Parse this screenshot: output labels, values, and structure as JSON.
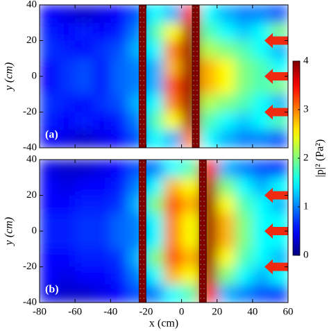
{
  "chart_data": [
    {
      "type": "heatmap",
      "panel_label": "(a)",
      "ylabel": "y (cm)",
      "xlim": [
        -80,
        60
      ],
      "ylim": [
        -40,
        40
      ],
      "xticks": [
        -80,
        -60,
        -40,
        -20,
        0,
        20,
        40,
        60
      ],
      "xticklabels": false,
      "yticks": [
        -40,
        -20,
        0,
        20,
        40
      ],
      "x": [
        -75,
        -65,
        -55,
        -45,
        -35,
        -25,
        -15,
        -5,
        5,
        15,
        25,
        35,
        45,
        55
      ],
      "y": [
        35,
        25,
        15,
        5,
        -5,
        -15,
        -25,
        -35
      ],
      "z": [
        [
          0.5,
          0.4,
          0.3,
          0.4,
          0.5,
          0.8,
          1.5,
          1.2,
          3.5,
          1.5,
          1.2,
          1.0,
          1.0,
          0.8
        ],
        [
          0.6,
          0.5,
          0.6,
          0.5,
          0.6,
          1.0,
          1.8,
          2.5,
          3.8,
          1.8,
          1.5,
          1.3,
          1.5,
          2.0
        ],
        [
          0.7,
          0.6,
          0.5,
          0.7,
          0.8,
          1.2,
          1.5,
          3.0,
          3.9,
          2.2,
          2.0,
          1.8,
          1.5,
          1.2
        ],
        [
          0.5,
          0.7,
          0.8,
          0.6,
          0.9,
          1.0,
          1.2,
          2.8,
          3.9,
          2.8,
          2.5,
          2.0,
          1.8,
          1.5
        ],
        [
          0.5,
          0.7,
          0.8,
          0.6,
          0.9,
          1.0,
          1.2,
          3.2,
          3.9,
          2.8,
          2.5,
          2.0,
          1.8,
          2.0
        ],
        [
          0.7,
          0.6,
          0.5,
          0.7,
          0.8,
          1.2,
          1.5,
          3.0,
          3.9,
          2.2,
          2.0,
          1.8,
          1.5,
          1.2
        ],
        [
          0.6,
          0.5,
          0.6,
          0.5,
          0.6,
          1.0,
          1.8,
          2.5,
          3.8,
          1.8,
          1.5,
          1.3,
          1.5,
          1.8
        ],
        [
          0.5,
          0.4,
          0.3,
          0.4,
          0.5,
          0.8,
          1.5,
          1.2,
          3.0,
          1.5,
          1.2,
          1.0,
          1.0,
          0.8
        ]
      ],
      "barriers": [
        [
          -24,
          -20
        ],
        [
          6,
          10
        ]
      ],
      "colorbar": {
        "label": "|p|² (Pa²)",
        "clim": [
          0,
          4
        ],
        "ticks": [
          0,
          1,
          2,
          3,
          4
        ],
        "colormap": "jet"
      }
    },
    {
      "type": "heatmap",
      "panel_label": "(b)",
      "ylabel": "y (cm)",
      "xlabel": "x (cm)",
      "xlim": [
        -80,
        60
      ],
      "ylim": [
        -40,
        40
      ],
      "xticks": [
        -80,
        -60,
        -40,
        -20,
        0,
        20,
        40,
        60
      ],
      "xticklabels": true,
      "yticks": [
        -40,
        -20,
        0,
        20,
        40
      ],
      "x": [
        -75,
        -65,
        -55,
        -45,
        -35,
        -25,
        -15,
        -5,
        5,
        15,
        25,
        35,
        45,
        55
      ],
      "y": [
        35,
        25,
        15,
        5,
        -5,
        -15,
        -25,
        -35
      ],
      "z": [
        [
          0.4,
          0.3,
          0.3,
          0.4,
          0.5,
          0.8,
          1.0,
          1.5,
          1.8,
          3.5,
          1.2,
          1.0,
          0.8,
          0.7
        ],
        [
          0.5,
          0.4,
          0.5,
          0.5,
          0.6,
          1.0,
          1.5,
          2.8,
          2.5,
          3.8,
          2.0,
          1.5,
          1.2,
          1.5
        ],
        [
          0.5,
          0.5,
          0.6,
          0.6,
          0.7,
          1.2,
          2.0,
          3.2,
          2.8,
          3.9,
          2.5,
          1.8,
          1.5,
          1.2
        ],
        [
          0.6,
          0.6,
          0.7,
          0.7,
          0.9,
          1.0,
          1.5,
          3.0,
          2.5,
          3.9,
          2.8,
          2.0,
          1.5,
          1.5
        ],
        [
          0.6,
          0.6,
          0.7,
          0.7,
          0.9,
          1.0,
          1.5,
          3.0,
          2.5,
          3.9,
          2.8,
          2.0,
          1.5,
          1.5
        ],
        [
          0.5,
          0.5,
          0.6,
          0.6,
          0.7,
          1.2,
          2.0,
          3.2,
          2.8,
          3.9,
          2.5,
          1.8,
          1.5,
          1.2
        ],
        [
          0.5,
          0.4,
          0.5,
          0.5,
          0.6,
          1.0,
          1.5,
          2.8,
          2.5,
          3.8,
          2.0,
          1.5,
          1.2,
          1.5
        ],
        [
          0.4,
          0.3,
          0.3,
          0.4,
          0.5,
          0.8,
          1.0,
          1.5,
          1.8,
          3.5,
          1.2,
          1.0,
          0.8,
          0.7
        ]
      ],
      "barriers": [
        [
          -24,
          -20
        ],
        [
          10,
          14
        ]
      ]
    }
  ]
}
